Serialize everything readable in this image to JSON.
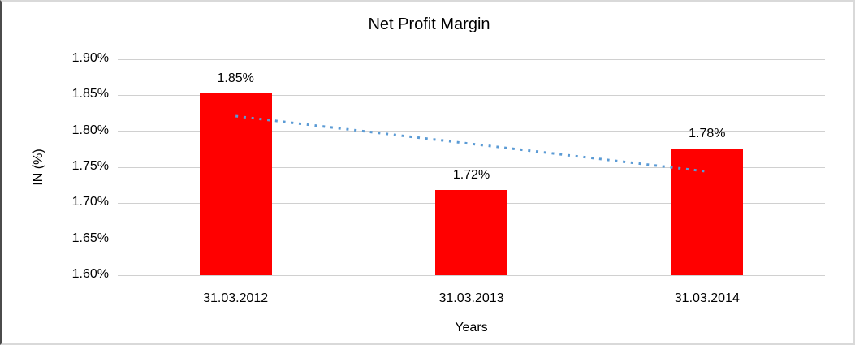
{
  "chart_data": {
    "type": "bar",
    "title": "Net Profit Margin",
    "xlabel": "Years",
    "ylabel": "IN (%)",
    "categories": [
      "31.03.2012",
      "31.03.2013",
      "31.03.2014"
    ],
    "values": [
      1.853,
      1.718,
      1.776
    ],
    "value_labels": [
      "1.85%",
      "1.72%",
      "1.78%"
    ],
    "ylim": [
      1.6,
      1.9
    ],
    "yticks": [
      {
        "value": 1.9,
        "label": "1.90%"
      },
      {
        "value": 1.85,
        "label": "1.85%"
      },
      {
        "value": 1.8,
        "label": "1.80%"
      },
      {
        "value": 1.75,
        "label": "1.75%"
      },
      {
        "value": 1.7,
        "label": "1.70%"
      },
      {
        "value": 1.65,
        "label": "1.65%"
      },
      {
        "value": 1.6,
        "label": "1.60%"
      }
    ],
    "grid": true,
    "legend": "none",
    "bar_color": "#ff0000",
    "gridline_color": "#d0d0d0",
    "trendline": {
      "type": "linear",
      "line_style": "dotted",
      "color": "#5b9bd5",
      "start_value": 1.821,
      "end_value": 1.744
    }
  }
}
